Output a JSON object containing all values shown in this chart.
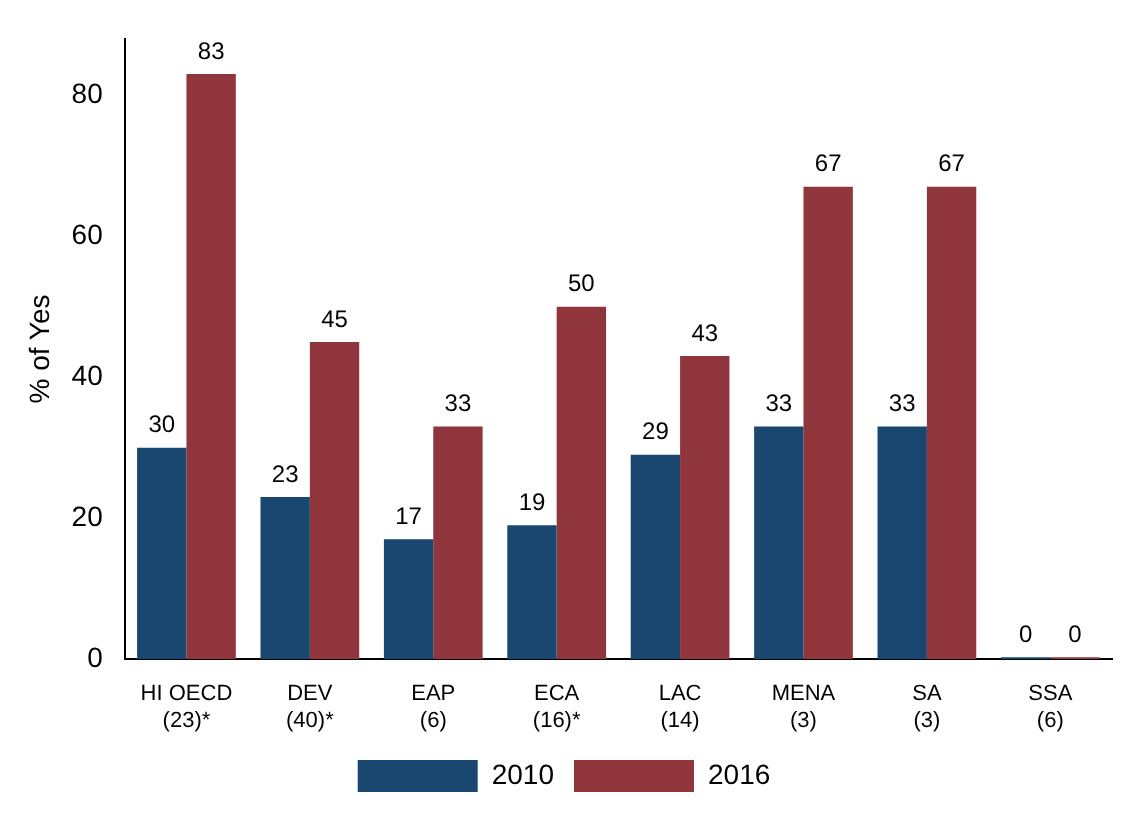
{
  "chart_data": {
    "type": "bar",
    "ylabel": "% of Yes",
    "categories": [
      "HI OECD\n(23)*",
      "DEV\n(40)*",
      "EAP\n(6)",
      "ECA\n(16)*",
      "LAC\n(14)",
      "MENA\n(3)",
      "SA\n(3)",
      "SSA\n(6)"
    ],
    "series": [
      {
        "name": "2010",
        "color": "#1a476f",
        "values": [
          30,
          23,
          17,
          19,
          29,
          33,
          33,
          0
        ]
      },
      {
        "name": "2016",
        "color": "#90353b",
        "values": [
          83,
          45,
          33,
          50,
          43,
          67,
          67,
          0
        ]
      }
    ],
    "ylim": [
      0,
      88
    ],
    "yticks": [
      0,
      20,
      40,
      60,
      80
    ],
    "grid": false,
    "legend": "bottom",
    "data_labels": true
  }
}
